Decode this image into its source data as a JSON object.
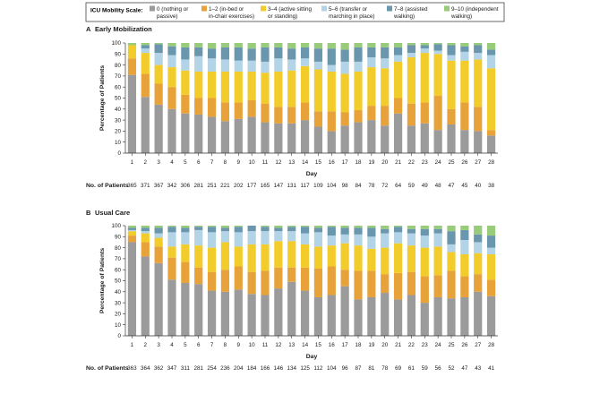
{
  "legend": {
    "title": "ICU Mobility Scale:",
    "items": [
      {
        "key": "0",
        "label": "0 (nothing or",
        "label2": "passive)",
        "color": "#9b9b9b"
      },
      {
        "key": "1-2",
        "label": "1–2 (in-bed or",
        "label2": "in-chair exercises)",
        "color": "#e8a23a"
      },
      {
        "key": "3-4",
        "label": "3–4 (active sitting",
        "label2": "or standing)",
        "color": "#f2cc2a"
      },
      {
        "key": "5-6",
        "label": "5–6 (transfer or",
        "label2": "marching in place)",
        "color": "#b3d3e6"
      },
      {
        "key": "7-8",
        "label": "7–8 (assisted",
        "label2": "walking)",
        "color": "#6a97ad"
      },
      {
        "key": "9-10",
        "label": "9–10 (independent",
        "label2": "walking)",
        "color": "#98cb7a"
      }
    ]
  },
  "chart_data": [
    {
      "type": "bar",
      "stacked": true,
      "panel_letter": "A",
      "title": "Early Mobilization",
      "xlabel": "Day",
      "ylabel": "Percentage of Patients",
      "ylim": [
        0,
        100
      ],
      "yticks": [
        0,
        10,
        20,
        30,
        40,
        50,
        60,
        70,
        80,
        90,
        100
      ],
      "categories": [
        "1",
        "2",
        "3",
        "4",
        "5",
        "6",
        "7",
        "8",
        "9",
        "10",
        "11",
        "12",
        "13",
        "14",
        "15",
        "16",
        "17",
        "18",
        "19",
        "20",
        "21",
        "22",
        "23",
        "24",
        "25",
        "26",
        "27",
        "28"
      ],
      "patients_label": "No. of Patients",
      "patients": [
        "365",
        "371",
        "367",
        "342",
        "306",
        "281",
        "251",
        "221",
        "202",
        "177",
        "165",
        "147",
        "131",
        "117",
        "109",
        "104",
        "98",
        "84",
        "78",
        "72",
        "64",
        "59",
        "49",
        "48",
        "47",
        "45",
        "40",
        "38"
      ],
      "series": [
        {
          "name": "0",
          "values": [
            71,
            51,
            44,
            40,
            36,
            35,
            33,
            29,
            31,
            33,
            28,
            27,
            27,
            30,
            24,
            20,
            25,
            28,
            30,
            25,
            36,
            25,
            27,
            21,
            26,
            21,
            20,
            16
          ]
        },
        {
          "name": "1-2",
          "values": [
            15,
            21,
            19,
            20,
            17,
            15,
            17,
            17,
            15,
            15,
            17,
            15,
            15,
            16,
            14,
            18,
            12,
            11,
            13,
            18,
            14,
            20,
            19,
            31,
            14,
            25,
            22,
            5
          ]
        },
        {
          "name": "3-4",
          "values": [
            12,
            19,
            17,
            18,
            22,
            24,
            24,
            28,
            28,
            26,
            28,
            32,
            33,
            33,
            38,
            36,
            35,
            35,
            35,
            34,
            33,
            42,
            45,
            38,
            44,
            38,
            43,
            56
          ]
        },
        {
          "name": "5-6",
          "values": [
            0,
            4,
            11,
            11,
            10,
            14,
            12,
            11,
            10,
            10,
            10,
            12,
            10,
            7,
            7,
            6,
            11,
            9,
            9,
            9,
            6,
            4,
            4,
            3,
            5,
            8,
            6,
            12
          ]
        },
        {
          "name": "7-8",
          "values": [
            0,
            3,
            8,
            8,
            11,
            8,
            9,
            11,
            12,
            11,
            13,
            10,
            10,
            10,
            12,
            15,
            11,
            13,
            9,
            10,
            7,
            7,
            3,
            6,
            9,
            5,
            7,
            5
          ]
        },
        {
          "name": "9-10",
          "values": [
            2,
            2,
            1,
            3,
            4,
            4,
            5,
            4,
            4,
            5,
            4,
            4,
            5,
            4,
            5,
            5,
            6,
            4,
            4,
            4,
            4,
            2,
            2,
            1,
            2,
            3,
            2,
            6
          ]
        }
      ]
    },
    {
      "type": "bar",
      "stacked": true,
      "panel_letter": "B",
      "title": "Usual Care",
      "xlabel": "Day",
      "ylabel": "Percentage of Patients",
      "ylim": [
        0,
        100
      ],
      "yticks": [
        0,
        10,
        20,
        30,
        40,
        50,
        60,
        70,
        80,
        90,
        100
      ],
      "categories": [
        "1",
        "2",
        "3",
        "4",
        "5",
        "6",
        "7",
        "8",
        "9",
        "10",
        "11",
        "12",
        "13",
        "14",
        "15",
        "16",
        "17",
        "18",
        "19",
        "20",
        "21",
        "22",
        "23",
        "24",
        "25",
        "26",
        "27",
        "28"
      ],
      "patients_label": "No. of Patients",
      "patients": [
        "363",
        "364",
        "362",
        "347",
        "311",
        "281",
        "254",
        "236",
        "204",
        "184",
        "166",
        "146",
        "134",
        "125",
        "112",
        "104",
        "96",
        "87",
        "81",
        "78",
        "69",
        "61",
        "59",
        "56",
        "52",
        "47",
        "43",
        "41"
      ],
      "series": [
        {
          "name": "0",
          "values": [
            85,
            72,
            66,
            51,
            48,
            47,
            41,
            40,
            42,
            38,
            37,
            43,
            49,
            41,
            35,
            37,
            45,
            33,
            35,
            39,
            33,
            37,
            30,
            35,
            34,
            35,
            40,
            36
          ]
        },
        {
          "name": "1-2",
          "values": [
            6,
            13,
            15,
            20,
            19,
            15,
            17,
            20,
            21,
            20,
            22,
            19,
            13,
            21,
            26,
            26,
            15,
            26,
            24,
            17,
            24,
            21,
            24,
            20,
            25,
            19,
            16,
            15
          ]
        },
        {
          "name": "3-4",
          "values": [
            4,
            8,
            8,
            10,
            16,
            20,
            22,
            25,
            18,
            25,
            24,
            24,
            24,
            21,
            20,
            19,
            24,
            23,
            20,
            24,
            27,
            24,
            26,
            26,
            17,
            20,
            19,
            23
          ]
        },
        {
          "name": "5-6",
          "values": [
            1,
            2,
            4,
            13,
            11,
            14,
            14,
            10,
            13,
            12,
            12,
            9,
            9,
            10,
            13,
            9,
            8,
            10,
            11,
            13,
            10,
            11,
            11,
            12,
            7,
            13,
            10,
            6
          ]
        },
        {
          "name": "7-8",
          "values": [
            2,
            3,
            5,
            5,
            4,
            3,
            5,
            3,
            5,
            5,
            4,
            3,
            4,
            6,
            4,
            8,
            6,
            6,
            8,
            4,
            5,
            4,
            6,
            4,
            12,
            9,
            7,
            11
          ]
        },
        {
          "name": "9-10",
          "values": [
            2,
            2,
            2,
            1,
            2,
            1,
            1,
            2,
            1,
            0,
            1,
            2,
            1,
            1,
            2,
            1,
            2,
            2,
            2,
            3,
            1,
            3,
            3,
            3,
            5,
            4,
            8,
            9
          ]
        }
      ]
    }
  ]
}
